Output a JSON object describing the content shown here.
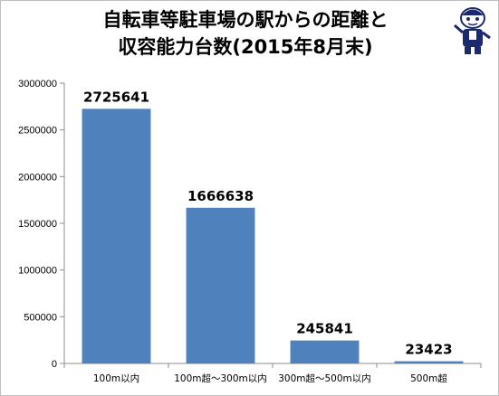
{
  "chart_data": {
    "type": "bar",
    "title_lines": [
      "自転車等駐車場の駅からの距離と",
      "収容能力台数(2015年8月末)"
    ],
    "categories": [
      "100m以内",
      "100m超〜300m以内",
      "300m超〜500m以内",
      "500m超"
    ],
    "values": [
      2725641,
      1666638,
      245841,
      23423
    ],
    "ylim": [
      0,
      3000000
    ],
    "y_ticks": [
      0,
      500000,
      1000000,
      1500000,
      2000000,
      2500000,
      3000000
    ],
    "bar_color": "#4f81bd",
    "grid": false,
    "legend": "none"
  }
}
